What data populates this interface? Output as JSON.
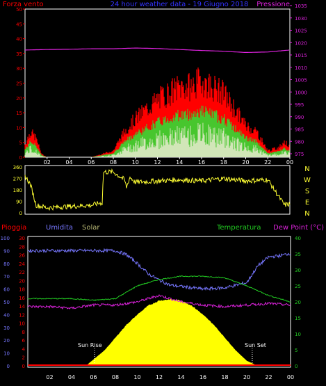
{
  "top_panel": {
    "title": "24 hour weather data - 19 Giugno 2018",
    "left_label": "Forza vento",
    "right_label": "Pressione",
    "left_ticks": [
      "0",
      "5",
      "10",
      "15",
      "20",
      "25",
      "30",
      "35",
      "40",
      "45",
      "50"
    ],
    "right_ticks": [
      "975",
      "980",
      "985",
      "990",
      "995",
      "1000",
      "1005",
      "1010",
      "1015",
      "1020",
      "1025",
      "1030",
      "1035"
    ],
    "x_ticks": [
      "02",
      "04",
      "06",
      "08",
      "10",
      "12",
      "14",
      "16",
      "18",
      "20",
      "22",
      "00"
    ]
  },
  "direction_panel": {
    "left_ticks": [
      "0",
      "90",
      "180",
      "270",
      "360"
    ],
    "compass_labels": [
      "N",
      "W",
      "S",
      "E",
      "N"
    ]
  },
  "bottom_panel": {
    "label_rain": "Pioggia",
    "label_humidity": "Umidita",
    "label_solar": "Solar",
    "label_temperature": "Temperatura",
    "label_dewpoint": "Dew Point (°C)",
    "humidity_ticks": [
      "0",
      "10",
      "20",
      "30",
      "40",
      "50",
      "60",
      "70",
      "80",
      "90",
      "100"
    ],
    "rain_ticks": [
      "0",
      "2",
      "4",
      "6",
      "8",
      "10",
      "12",
      "14",
      "16",
      "18",
      "20",
      "22",
      "24",
      "26",
      "28",
      "30"
    ],
    "temp_ticks": [
      "0",
      "5",
      "10",
      "15",
      "20",
      "25",
      "30",
      "35",
      "40"
    ],
    "x_ticks": [
      "02",
      "04",
      "06",
      "08",
      "10",
      "12",
      "14",
      "16",
      "18",
      "20",
      "22",
      "00"
    ],
    "sun_rise_label": "Sun Rise",
    "sun_set_label": "Sun Set"
  },
  "colors": {
    "wind_gust": "#ff0000",
    "wind_avg": "#33dd33",
    "wind_min": "#ccffcc",
    "pressure": "#dd22dd",
    "direction": "#ffff33",
    "humidity": "#7777ff",
    "temperature": "#22cc22",
    "dewpoint": "#dd22dd",
    "solar": "#ffff00",
    "rain": "#ff0000"
  },
  "chart_data": [
    {
      "type": "line",
      "title": "24 hour weather data - 19 Giugno 2018",
      "x_unit": "hours",
      "x_range": [
        0,
        24
      ],
      "series": [
        {
          "name": "Forza vento",
          "axis": "left",
          "ylim": [
            0,
            50
          ],
          "x": [
            0,
            0.5,
            1,
            1.5,
            2,
            4,
            6,
            8,
            9,
            10,
            11,
            12,
            13,
            14,
            15,
            16,
            17,
            18,
            19,
            20,
            21,
            22,
            23,
            23.5,
            24
          ],
          "values": [
            4,
            8,
            6,
            1,
            0,
            0,
            0,
            2,
            8,
            12,
            15,
            18,
            20,
            22,
            22,
            24,
            22,
            20,
            15,
            10,
            8,
            2,
            3,
            5,
            3
          ]
        },
        {
          "name": "Pressione",
          "axis": "right",
          "ylim": [
            975,
            1035
          ],
          "x": [
            0,
            2,
            4,
            6,
            8,
            10,
            12,
            14,
            16,
            18,
            20,
            22,
            24
          ],
          "values": [
            1017,
            1017.2,
            1017.3,
            1017.5,
            1017.5,
            1017.8,
            1017.6,
            1017.2,
            1016.8,
            1016.5,
            1016,
            1016.2,
            1017
          ]
        }
      ]
    },
    {
      "type": "line",
      "x_range": [
        0,
        24
      ],
      "ylim": [
        0,
        360
      ],
      "series": [
        {
          "name": "Wind direction",
          "x": [
            0,
            0.5,
            1,
            2,
            4,
            6,
            7,
            7.1,
            8,
            9,
            9.2,
            9.5,
            10,
            12,
            14,
            16,
            18,
            20,
            22,
            23.5,
            24
          ],
          "values": [
            290,
            220,
            60,
            40,
            50,
            60,
            80,
            320,
            320,
            260,
            200,
            280,
            240,
            250,
            260,
            250,
            270,
            250,
            260,
            60,
            70
          ]
        }
      ]
    },
    {
      "type": "line",
      "x_range": [
        0,
        24
      ],
      "series": [
        {
          "name": "Umidita",
          "axis": "humidity",
          "ylim": [
            0,
            100
          ],
          "x": [
            0,
            2,
            4,
            6,
            8,
            9,
            10,
            11,
            12,
            13,
            14,
            16,
            18,
            20,
            21,
            22,
            23,
            24
          ],
          "values": [
            90,
            90,
            90,
            90,
            90,
            87,
            80,
            72,
            67,
            63,
            62,
            60,
            61,
            65,
            78,
            85,
            86,
            88
          ]
        },
        {
          "name": "Temperatura",
          "axis": "temp",
          "ylim": [
            0,
            40
          ],
          "x": [
            0,
            2,
            4,
            6,
            8,
            10,
            12,
            14,
            16,
            18,
            20,
            22,
            24
          ],
          "values": [
            21,
            21,
            21,
            20.5,
            21,
            25,
            27,
            28,
            28,
            27.5,
            25,
            22,
            20
          ]
        },
        {
          "name": "Dew Point",
          "axis": "temp",
          "ylim": [
            0,
            40
          ],
          "x": [
            0,
            2,
            4,
            6,
            8,
            10,
            12,
            14,
            16,
            18,
            20,
            22,
            24
          ],
          "values": [
            18.5,
            18.5,
            18,
            19,
            19,
            20,
            22,
            20,
            19,
            18.5,
            19,
            19.5,
            19
          ]
        },
        {
          "name": "Solar",
          "axis": "humidity",
          "ylim": [
            0,
            100
          ],
          "type": "area",
          "x": [
            5.3,
            6,
            7,
            8,
            9,
            10,
            11,
            12,
            13,
            14,
            15,
            16,
            17,
            18,
            19,
            20,
            21
          ],
          "values": [
            0,
            5,
            12,
            22,
            32,
            40,
            47,
            51,
            52,
            51,
            47,
            40,
            32,
            22,
            12,
            4,
            0
          ]
        },
        {
          "name": "Pioggia",
          "axis": "rain",
          "ylim": [
            0,
            30
          ],
          "x": [
            0,
            24
          ],
          "values": [
            0,
            0
          ]
        }
      ]
    }
  ]
}
